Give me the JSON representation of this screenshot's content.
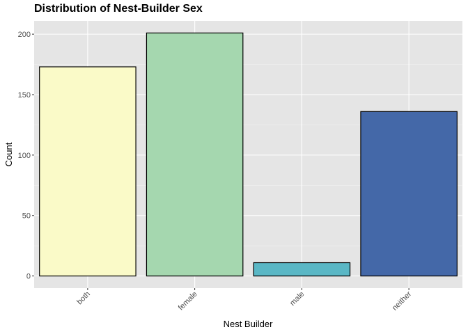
{
  "chart_data": {
    "type": "bar",
    "title": "Distribution of Nest-Builder Sex",
    "xlabel": "Nest Builder",
    "ylabel": "Count",
    "categories": [
      "both",
      "female",
      "male",
      "neither"
    ],
    "values": [
      173,
      201,
      11,
      136
    ],
    "colors": [
      "#fafac8",
      "#a5d7af",
      "#5ab7c5",
      "#4468a8"
    ],
    "yticks": [
      "0",
      "50",
      "100",
      "150",
      "200"
    ],
    "ylim": [
      -10,
      211
    ],
    "grid": true,
    "panel_background": "#e5e5e5",
    "legend": "none"
  }
}
